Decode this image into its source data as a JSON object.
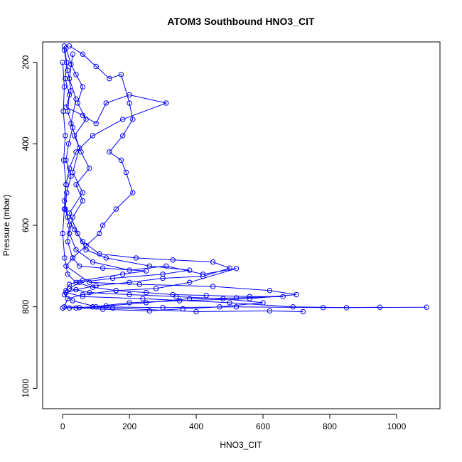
{
  "chart_data": {
    "type": "line",
    "title": "ATOM3 Southbound HNO3_CIT",
    "xlabel": "HNO3_CIT",
    "ylabel": "Pressure (mbar)",
    "xlim": [
      -60,
      1130
    ],
    "ylim": [
      1050,
      150
    ],
    "y_reversed": true,
    "x_ticks": [
      0,
      200,
      400,
      600,
      800,
      1000
    ],
    "y_ticks": [
      200,
      400,
      600,
      800,
      1000
    ],
    "x_tick_labels": [
      "0",
      "200",
      "400",
      "600",
      "800",
      "1000"
    ],
    "y_tick_labels": [
      "200",
      "400",
      "600",
      "800",
      "1000"
    ],
    "grid": false,
    "legend": "none",
    "series_color": "#0000ff",
    "marker": "open-circle",
    "series": [
      {
        "points": [
          [
            5,
            160
          ],
          [
            12,
            200
          ],
          [
            8,
            240
          ],
          [
            20,
            280
          ],
          [
            15,
            320
          ],
          [
            30,
            360
          ],
          [
            18,
            400
          ],
          [
            10,
            440
          ],
          [
            25,
            480
          ],
          [
            12,
            520
          ],
          [
            8,
            560
          ],
          [
            20,
            600
          ],
          [
            15,
            640
          ],
          [
            30,
            680
          ],
          [
            50,
            700
          ],
          [
            120,
            705
          ],
          [
            250,
            712
          ],
          [
            180,
            720
          ],
          [
            60,
            735
          ],
          [
            20,
            745
          ],
          [
            10,
            760
          ],
          [
            5,
            770
          ],
          [
            30,
            785
          ],
          [
            100,
            800
          ],
          [
            300,
            802
          ],
          [
            520,
            800
          ],
          [
            780,
            802
          ],
          [
            1090,
            801
          ]
        ]
      },
      {
        "points": [
          [
            10,
            165
          ],
          [
            25,
            205
          ],
          [
            40,
            230
          ],
          [
            60,
            260
          ],
          [
            45,
            300
          ],
          [
            70,
            340
          ],
          [
            35,
            380
          ],
          [
            55,
            420
          ],
          [
            80,
            460
          ],
          [
            40,
            500
          ],
          [
            60,
            540
          ],
          [
            30,
            580
          ],
          [
            20,
            620
          ],
          [
            40,
            660
          ],
          [
            90,
            690
          ],
          [
            200,
            710
          ],
          [
            310,
            700
          ],
          [
            420,
            720
          ],
          [
            520,
            706
          ],
          [
            380,
            740
          ],
          [
            280,
            755
          ],
          [
            160,
            760
          ],
          [
            60,
            770
          ],
          [
            15,
            780
          ],
          [
            5,
            800
          ],
          [
            150,
            803
          ],
          [
            400,
            812
          ],
          [
            620,
            810
          ],
          [
            720,
            812
          ]
        ]
      },
      {
        "points": [
          [
            20,
            160
          ],
          [
            60,
            180
          ],
          [
            100,
            210
          ],
          [
            140,
            240
          ],
          [
            175,
            230
          ],
          [
            200,
            300
          ],
          [
            210,
            340
          ],
          [
            180,
            380
          ],
          [
            140,
            420
          ],
          [
            175,
            440
          ],
          [
            190,
            470
          ],
          [
            210,
            520
          ],
          [
            160,
            560
          ],
          [
            120,
            600
          ],
          [
            110,
            620
          ],
          [
            70,
            650
          ],
          [
            30,
            680
          ],
          [
            10,
            700
          ],
          [
            80,
            740
          ],
          [
            230,
            745
          ],
          [
            450,
            750
          ],
          [
            620,
            760
          ],
          [
            700,
            770
          ],
          [
            560,
            780
          ],
          [
            350,
            785
          ],
          [
            200,
            790
          ],
          [
            90,
            800
          ],
          [
            20,
            803
          ]
        ]
      },
      {
        "points": [
          [
            5,
            170
          ],
          [
            15,
            220
          ],
          [
            25,
            270
          ],
          [
            10,
            310
          ],
          [
            60,
            330
          ],
          [
            100,
            350
          ],
          [
            130,
            300
          ],
          [
            200,
            280
          ],
          [
            310,
            300
          ],
          [
            180,
            340
          ],
          [
            90,
            380
          ],
          [
            40,
            420
          ],
          [
            20,
            460
          ],
          [
            10,
            500
          ],
          [
            5,
            540
          ],
          [
            15,
            580
          ],
          [
            35,
            610
          ],
          [
            60,
            640
          ],
          [
            110,
            670
          ],
          [
            220,
            680
          ],
          [
            330,
            685
          ],
          [
            450,
            690
          ],
          [
            500,
            705
          ],
          [
            420,
            725
          ],
          [
            300,
            730
          ],
          [
            200,
            740
          ],
          [
            100,
            748
          ],
          [
            40,
            758
          ],
          [
            10,
            765
          ],
          [
            60,
            775
          ],
          [
            240,
            780
          ],
          [
            500,
            790
          ],
          [
            690,
            800
          ],
          [
            850,
            802
          ],
          [
            950,
            801
          ]
        ]
      },
      {
        "points": [
          [
            30,
            180
          ],
          [
            20,
            240
          ],
          [
            40,
            290
          ],
          [
            25,
            350
          ],
          [
            50,
            410
          ],
          [
            30,
            470
          ],
          [
            60,
            520
          ],
          [
            20,
            570
          ],
          [
            45,
            620
          ],
          [
            70,
            660
          ],
          [
            130,
            680
          ],
          [
            260,
            700
          ],
          [
            380,
            710
          ],
          [
            300,
            720
          ],
          [
            150,
            730
          ],
          [
            50,
            740
          ],
          [
            20,
            755
          ],
          [
            80,
            765
          ],
          [
            200,
            770
          ],
          [
            340,
            775
          ],
          [
            480,
            780
          ],
          [
            600,
            790
          ],
          [
            470,
            800
          ],
          [
            360,
            805
          ],
          [
            260,
            810
          ],
          [
            120,
            806
          ],
          [
            40,
            803
          ]
        ]
      },
      {
        "points": [
          [
            0,
            200
          ],
          [
            5,
            260
          ],
          [
            2,
            320
          ],
          [
            8,
            380
          ],
          [
            3,
            440
          ],
          [
            10,
            500
          ],
          [
            5,
            560
          ],
          [
            0,
            620
          ],
          [
            6,
            680
          ],
          [
            15,
            720
          ],
          [
            40,
            740
          ],
          [
            90,
            752
          ],
          [
            160,
            760
          ],
          [
            250,
            765
          ],
          [
            330,
            770
          ],
          [
            430,
            772
          ],
          [
            560,
            775
          ],
          [
            660,
            775
          ],
          [
            520,
            778
          ],
          [
            380,
            780
          ],
          [
            250,
            790
          ],
          [
            130,
            798
          ],
          [
            50,
            802
          ],
          [
            0,
            803
          ]
        ]
      }
    ]
  }
}
